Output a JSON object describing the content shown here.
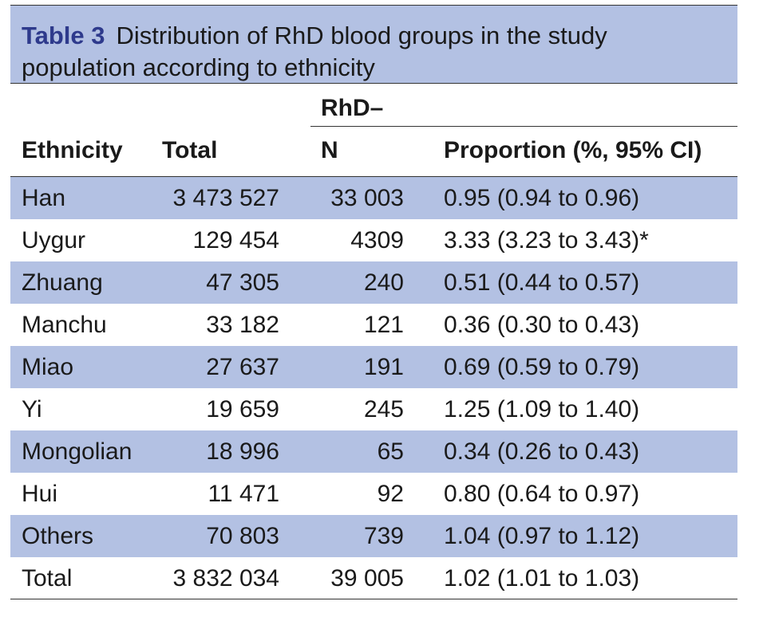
{
  "caption": {
    "label": "Table 3",
    "text": "Distribution of RhD blood groups in the study population according to ethnicity"
  },
  "header": {
    "group": "RhD–",
    "columns": [
      "Ethnicity",
      "Total",
      "N",
      "Proportion (%, 95% CI)"
    ]
  },
  "rows": [
    {
      "ethnicity": "Han",
      "total": "3 473 527",
      "n": "33 003",
      "proportion": "0.95 (0.94 to 0.96)"
    },
    {
      "ethnicity": "Uygur",
      "total": "129 454",
      "n": "4309",
      "proportion": "3.33 (3.23 to 3.43)*"
    },
    {
      "ethnicity": "Zhuang",
      "total": "47 305",
      "n": "240",
      "proportion": "0.51 (0.44 to 0.57)"
    },
    {
      "ethnicity": "Manchu",
      "total": "33 182",
      "n": "121",
      "proportion": "0.36 (0.30 to 0.43)"
    },
    {
      "ethnicity": "Miao",
      "total": "27 637",
      "n": "191",
      "proportion": "0.69 (0.59 to 0.79)"
    },
    {
      "ethnicity": "Yi",
      "total": "19 659",
      "n": "245",
      "proportion": "1.25 (1.09 to 1.40)"
    },
    {
      "ethnicity": "Mongolian",
      "total": "18 996",
      "n": "65",
      "proportion": "0.34 (0.26 to 0.43)"
    },
    {
      "ethnicity": "Hui",
      "total": "11 471",
      "n": "92",
      "proportion": "0.80 (0.64 to 0.97)"
    },
    {
      "ethnicity": "Others",
      "total": "70 803",
      "n": "739",
      "proportion": "1.04 (0.97 to 1.12)"
    },
    {
      "ethnicity": "Total",
      "total": "3 832 034",
      "n": "39 005",
      "proportion": "1.02 (1.01 to 1.03)"
    }
  ],
  "colors": {
    "band": "#b3c1e3",
    "label": "#2e3a8c"
  }
}
